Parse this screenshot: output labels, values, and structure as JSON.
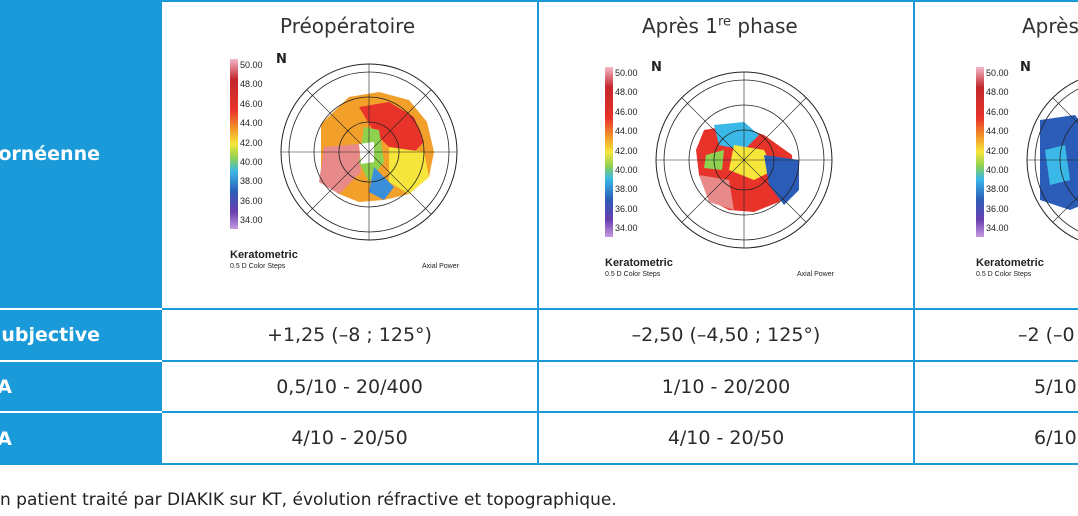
{
  "row_labels": {
    "topography": "ornéenne",
    "subjective": "ubjective",
    "row3": "A",
    "row4": "A"
  },
  "columns": [
    {
      "header": "Préopératoire",
      "subjective": "+1,25 (–8 ; 125°)",
      "row3": "0,5/10 - 20/400",
      "row4": "4/10 - 20/50"
    },
    {
      "header_main": "Après 1",
      "header_sup": "re",
      "header_tail": " phase",
      "subjective": "–2,50 (–4,50 ; 125°)",
      "row3": "1/10 - 20/200",
      "row4": "4/10 - 20/50"
    },
    {
      "header": "Après",
      "subjective": "–2 (–0",
      "row3": "5/10",
      "row4": "6/10"
    }
  ],
  "topo_map": {
    "scale": [
      "50.00",
      "48.00",
      "46.00",
      "44.00",
      "42.00",
      "40.00",
      "38.00",
      "36.00",
      "34.00"
    ],
    "north_label": "N",
    "title": "Keratometric",
    "subtitle": "0.5 D Color Steps",
    "mode": "Axial Power"
  },
  "caption": "n patient traité par DIAKIK sur KT, évolution réfractive et topographique.",
  "colors": {
    "accent": "#1a9ad9"
  }
}
